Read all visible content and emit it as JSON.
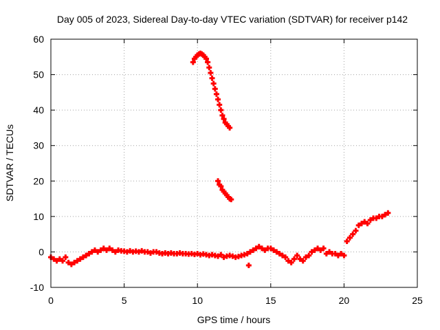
{
  "chart_data": {
    "type": "scatter",
    "title": "Day 005 of 2023, Sidereal Day-to-day VTEC variation (SDTVAR) for receiver p142",
    "xlabel": "GPS time / hours",
    "ylabel": "SDTVAR / TECUs",
    "xlim": [
      0,
      25
    ],
    "ylim": [
      -10,
      60
    ],
    "xticks": [
      0,
      5,
      10,
      15,
      20,
      25
    ],
    "yticks": [
      -10,
      0,
      10,
      20,
      30,
      40,
      50,
      60
    ],
    "grid": true,
    "marker": "plus",
    "series": [
      {
        "name": "p142",
        "color": "#ff0000",
        "x": [
          0.0,
          0.2,
          0.4,
          0.6,
          0.8,
          1.0,
          1.2,
          1.4,
          1.6,
          1.8,
          2.0,
          2.2,
          2.4,
          2.6,
          2.8,
          3.0,
          3.2,
          3.4,
          3.6,
          3.8,
          4.0,
          4.2,
          4.4,
          4.6,
          4.8,
          5.0,
          5.2,
          5.4,
          5.6,
          5.8,
          6.0,
          6.2,
          6.4,
          6.6,
          6.8,
          7.0,
          7.2,
          7.4,
          7.6,
          7.8,
          8.0,
          8.2,
          8.4,
          8.6,
          8.8,
          9.0,
          9.2,
          9.4,
          9.6,
          9.8,
          10.0,
          10.2,
          10.4,
          10.6,
          10.8,
          11.0,
          11.2,
          11.4,
          11.6,
          11.8,
          12.0,
          12.2,
          12.4,
          12.6,
          12.8,
          13.0,
          13.2,
          13.4,
          13.6,
          13.8,
          14.0,
          14.2,
          14.4,
          14.6,
          14.8,
          15.0,
          15.2,
          15.4,
          15.6,
          15.8,
          16.0,
          16.2,
          16.4,
          16.6,
          16.8,
          17.0,
          17.2,
          17.4,
          17.6,
          17.8,
          18.0,
          18.2,
          18.4,
          18.6,
          18.8,
          19.0,
          19.2,
          19.4,
          19.6,
          19.8,
          20.0,
          20.2,
          20.4,
          20.6,
          20.8,
          21.0,
          21.2,
          21.4,
          21.6,
          21.8,
          22.0,
          22.2,
          22.4,
          22.6,
          22.8,
          23.0,
          9.7,
          9.8,
          9.9,
          10.0,
          10.1,
          10.2,
          10.3,
          10.4,
          10.5,
          10.6,
          10.7,
          10.8,
          10.9,
          11.0,
          11.1,
          11.2,
          11.3,
          11.4,
          11.5,
          11.6,
          11.7,
          11.8,
          11.9,
          12.0,
          12.1,
          12.2,
          11.4,
          11.5,
          11.6,
          11.7,
          11.8,
          11.9,
          12.0,
          12.1,
          12.2,
          12.3,
          13.5
        ],
        "y": [
          -1.5,
          -2.0,
          -2.5,
          -2.0,
          -2.5,
          -1.5,
          -3.0,
          -3.5,
          -3.0,
          -2.5,
          -2.0,
          -1.5,
          -1.0,
          -0.5,
          0.0,
          0.5,
          0.0,
          0.5,
          1.0,
          0.5,
          1.0,
          0.5,
          0.0,
          0.5,
          0.3,
          0.2,
          0.0,
          0.3,
          0.0,
          0.2,
          0.0,
          0.3,
          0.0,
          0.0,
          -0.3,
          0.0,
          0.0,
          -0.3,
          -0.5,
          -0.3,
          -0.5,
          -0.3,
          -0.5,
          -0.5,
          -0.3,
          -0.5,
          -0.5,
          -0.6,
          -0.5,
          -0.7,
          -0.5,
          -0.8,
          -0.6,
          -0.8,
          -1.0,
          -0.8,
          -1.0,
          -1.2,
          -0.8,
          -1.5,
          -1.2,
          -1.0,
          -1.2,
          -1.5,
          -1.3,
          -1.0,
          -0.8,
          -0.5,
          0.0,
          0.5,
          1.0,
          1.5,
          1.0,
          0.5,
          1.0,
          1.0,
          0.5,
          0.0,
          -0.5,
          -1.0,
          -1.5,
          -2.5,
          -3.0,
          -2.0,
          -1.0,
          -2.0,
          -2.5,
          -1.5,
          -1.0,
          0.0,
          0.5,
          1.0,
          0.5,
          1.0,
          -0.5,
          0.0,
          -0.5,
          -0.5,
          -1.0,
          -0.5,
          -1.0,
          3.0,
          4.0,
          5.0,
          6.0,
          7.5,
          8.0,
          8.5,
          8.0,
          9.0,
          9.5,
          9.5,
          10.0,
          10.0,
          10.5,
          11.0,
          53.5,
          54.5,
          55.0,
          55.5,
          55.8,
          56.0,
          55.8,
          55.5,
          55.0,
          54.5,
          53.5,
          52.0,
          50.5,
          49.0,
          47.5,
          46.0,
          44.5,
          43.0,
          41.5,
          40.0,
          38.5,
          37.5,
          36.5,
          36.0,
          35.5,
          35.0,
          20.0,
          19.0,
          18.5,
          17.5,
          17.0,
          16.5,
          16.0,
          15.5,
          15.0,
          14.8,
          -3.8
        ]
      }
    ]
  }
}
